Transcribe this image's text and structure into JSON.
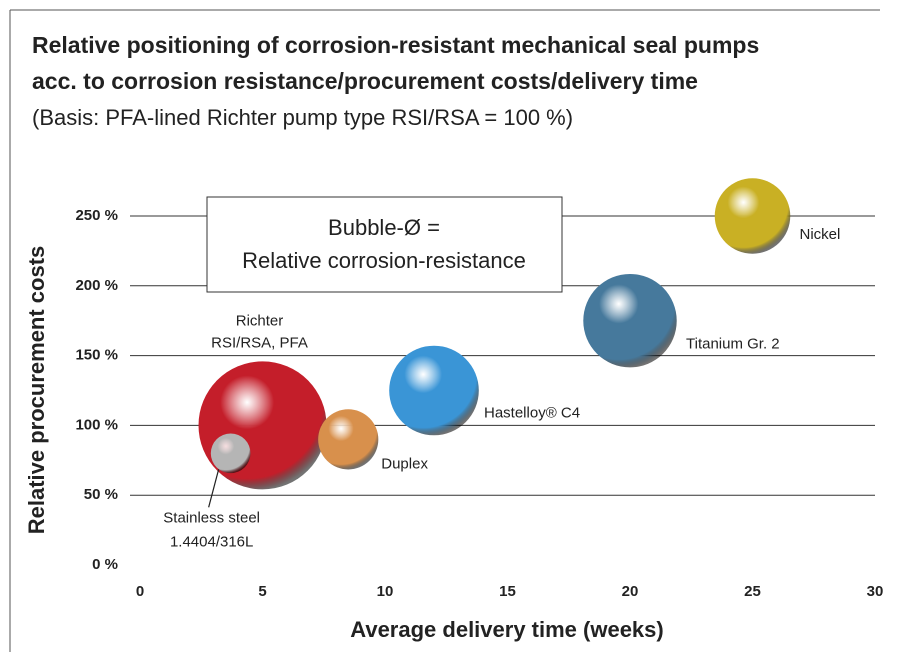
{
  "chart_data": {
    "type": "bubble",
    "title": [
      "Relative positioning of corrosion-resistant mechanical seal pumps",
      "acc. to corrosion resistance/procurement costs/delivery time"
    ],
    "subtitle": "(Basis: PFA-lined Richter pump type RSI/RSA = 100 %)",
    "x_label": "Average delivery time (weeks)",
    "y_label": "Relative procurement costs",
    "annotation": [
      "Bubble-Ø =",
      "Relative corrosion-resistance"
    ],
    "labels": [
      [
        "Richter",
        "RSI/RSA, PFA"
      ],
      [
        "Stainless steel",
        "1.4404/316L"
      ],
      [
        "Duplex"
      ],
      [
        "Hastelloy® C4"
      ],
      [
        "Titanium Gr. 2"
      ],
      [
        "Nickel"
      ]
    ],
    "x": [
      5,
      3.7,
      8.5,
      12,
      20,
      25
    ],
    "values": [
      100,
      80,
      90,
      125,
      175,
      250
    ],
    "sizes": [
      100,
      31,
      47,
      70,
      73,
      59
    ],
    "colors": [
      "#c41e2a",
      "#b5b5b5",
      "#d8904c",
      "#3a95d6",
      "#46799c",
      "#c9b024"
    ],
    "xlim": [
      0,
      30
    ],
    "xticks": [
      0,
      5,
      10,
      15,
      20,
      25,
      30
    ],
    "ylim": [
      0,
      250
    ],
    "yticks": [
      {
        "value": 0,
        "label": "0 %"
      },
      {
        "value": 50,
        "label": "50 %"
      },
      {
        "value": 100,
        "label": "100 %"
      },
      {
        "value": 150,
        "label": "150 %"
      },
      {
        "value": 200,
        "label": "200 %"
      },
      {
        "value": 250,
        "label": "250 %"
      }
    ],
    "grid": true
  }
}
